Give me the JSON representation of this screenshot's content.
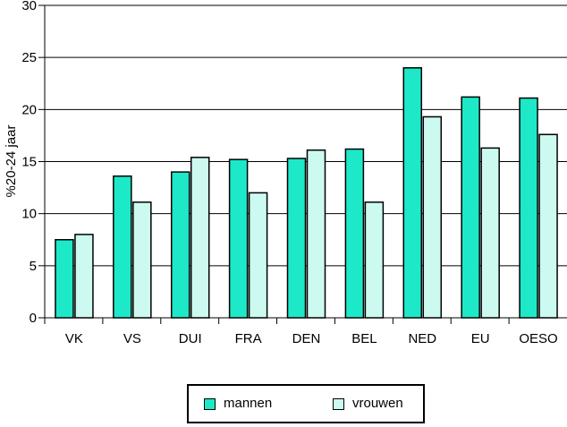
{
  "chart_data": {
    "type": "bar",
    "categories": [
      "VK",
      "VS",
      "DUI",
      "FRA",
      "DEN",
      "BEL",
      "NED",
      "EU",
      "OESO"
    ],
    "series": [
      {
        "name": "mannen",
        "color": "#1de9c8",
        "values": [
          7.5,
          13.6,
          14.0,
          15.2,
          15.3,
          16.2,
          24.0,
          21.2,
          21.1
        ]
      },
      {
        "name": "vrouwen",
        "color": "#ccfaf1",
        "values": [
          8.0,
          11.1,
          15.4,
          12.0,
          16.1,
          11.1,
          19.3,
          16.3,
          17.6
        ]
      }
    ],
    "title": "",
    "xlabel": "",
    "ylabel": "%20-24 jaar",
    "ylim": [
      0,
      30
    ],
    "yticks": [
      0,
      5,
      10,
      15,
      20,
      25,
      30
    ],
    "grid": true,
    "legend_position": "bottom"
  }
}
